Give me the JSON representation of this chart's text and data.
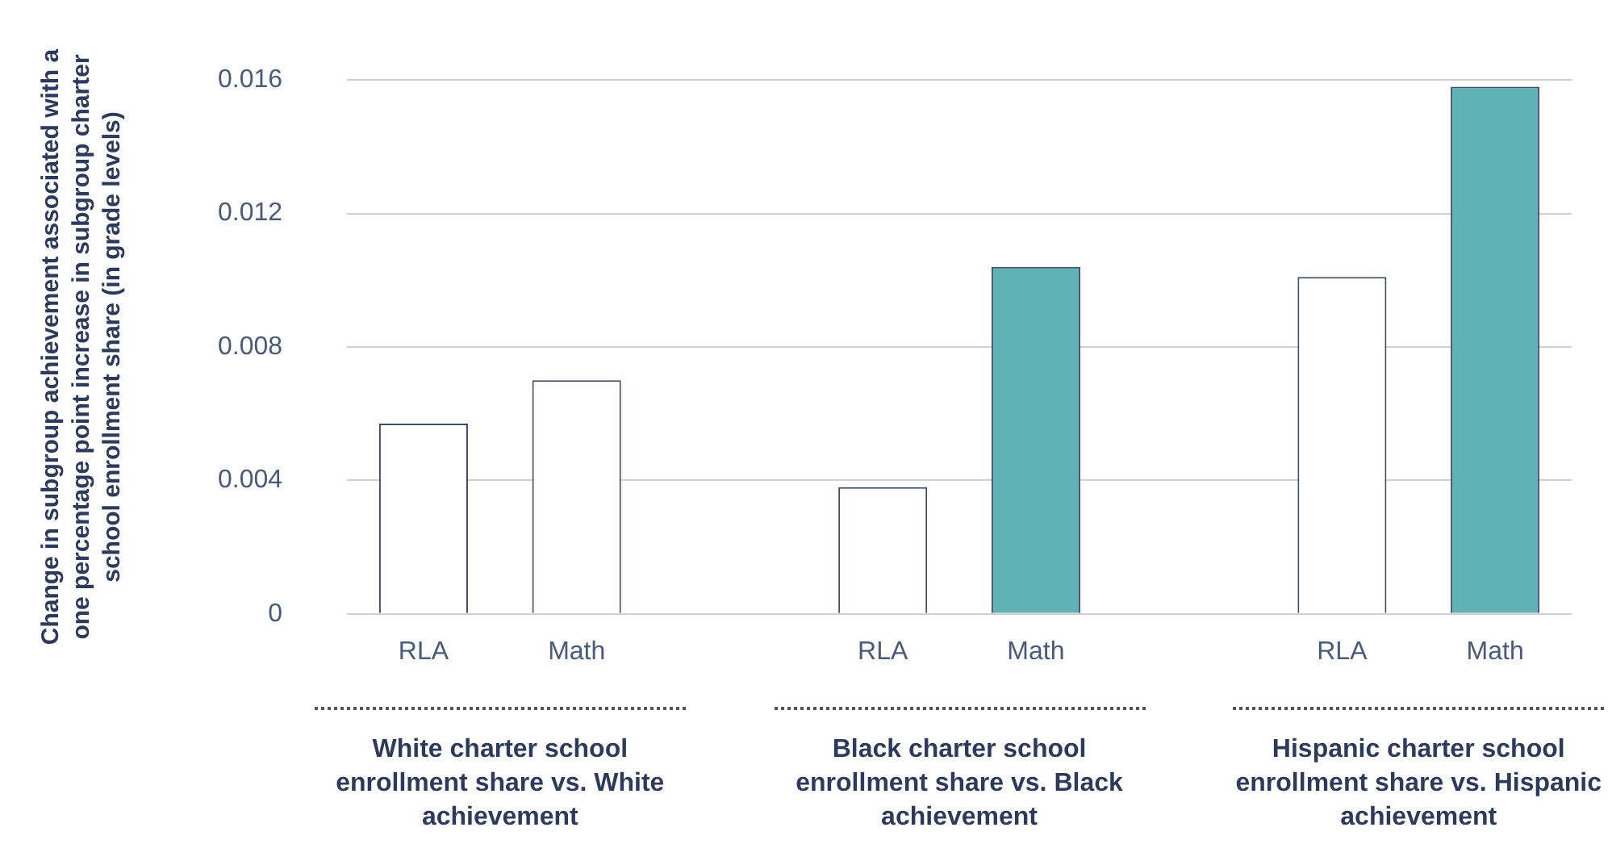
{
  "chart_data": {
    "type": "bar",
    "ylabel": "Change in subgroup achievement associated with a one percentage point increase in subgroup charter school enrollment share (in grade levels)",
    "categories": [
      "RLA",
      "Math",
      null,
      "RLA",
      "Math",
      null,
      "RLA",
      "Math"
    ],
    "values": [
      0.0057,
      0.007,
      null,
      0.0038,
      0.0104,
      null,
      0.0101,
      0.0158
    ],
    "colors": [
      "#ffffff",
      "#ffffff",
      "#ffffff",
      "#ffffff",
      "#5fb3b6",
      "#ffffff",
      "#ffffff",
      "#5fb3b6"
    ],
    "ylim": [
      0,
      0.016
    ],
    "yticks": [
      0,
      0.004,
      0.008,
      0.012,
      0.016
    ],
    "grid": "y",
    "annotations": [
      "White charter school enrollment share vs. White achievement",
      "Black charter school enrollment share vs. Black achievement",
      "Hispanic charter school enrollment share vs. Hispanic achievement"
    ]
  }
}
